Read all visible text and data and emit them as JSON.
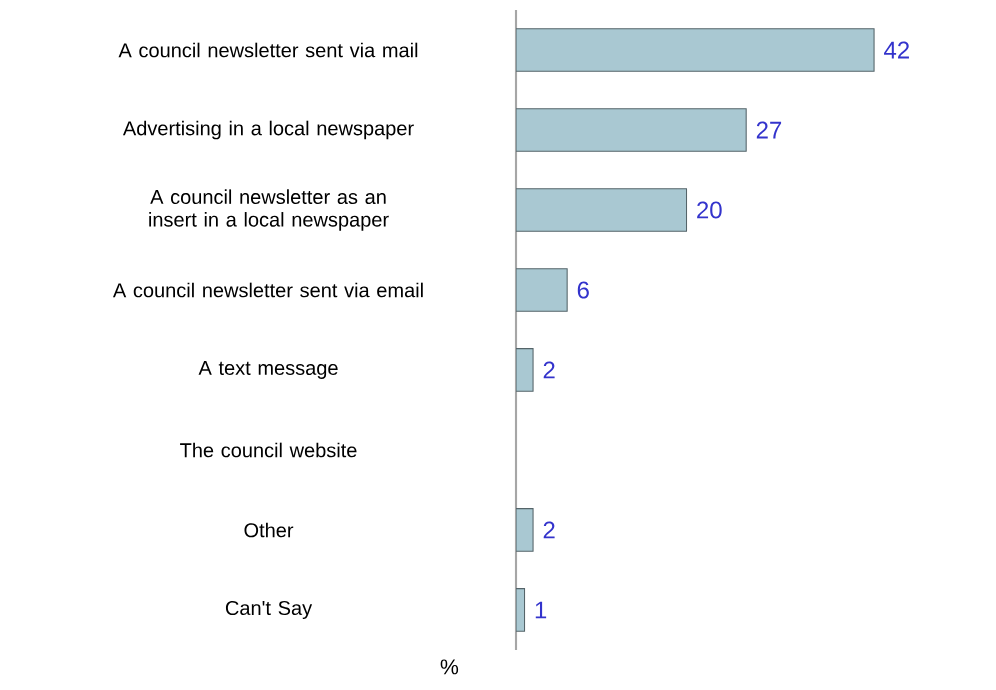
{
  "chart_data": {
    "type": "bar",
    "orientation": "horizontal",
    "xlabel": "%",
    "categories": [
      "A council newsletter sent via mail",
      "Advertising in a local newspaper",
      "A council newsletter as an insert in a local newspaper",
      "A council newsletter sent via email",
      "A text message",
      "The council website",
      "Other",
      "Can't Say"
    ],
    "values": [
      42,
      27,
      20,
      6,
      2,
      null,
      2,
      1
    ],
    "value_labels": [
      "42",
      "27",
      "20",
      "6",
      "2",
      null,
      "2",
      "1"
    ],
    "color": "#a9c8d2"
  }
}
